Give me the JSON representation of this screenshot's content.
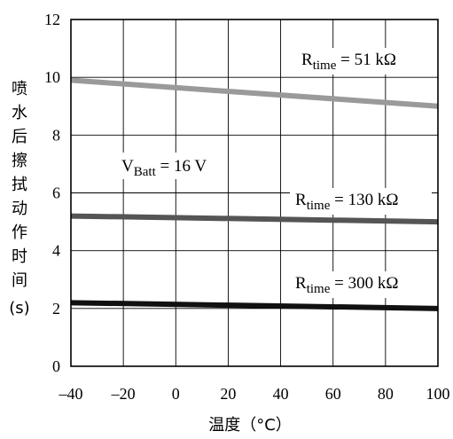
{
  "chart_data": {
    "type": "line",
    "xlabel": "温度（°C）",
    "ylabel": "喷水后擦拭动作时间(s)",
    "xlim": [
      -40,
      100
    ],
    "ylim": [
      0,
      12
    ],
    "x_ticks": [
      "–40",
      "–20",
      "0",
      "20",
      "40",
      "60",
      "80",
      "100"
    ],
    "y_ticks": [
      "0",
      "2",
      "4",
      "6",
      "8",
      "10",
      "12"
    ],
    "grid": true,
    "series": [
      {
        "label_main": "R",
        "label_sub": "time",
        "label_rest": " = 51 kΩ",
        "color": "#9a9a9a",
        "x": [
          -40,
          100
        ],
        "y": [
          9.9,
          9.0
        ]
      },
      {
        "label_main": "R",
        "label_sub": "time",
        "label_rest": " = 130 kΩ",
        "color": "#555555",
        "x": [
          -40,
          100
        ],
        "y": [
          5.2,
          5.0
        ]
      },
      {
        "label_main": "R",
        "label_sub": "time",
        "label_rest": " = 300 kΩ",
        "color": "#111111",
        "x": [
          -40,
          100
        ],
        "y": [
          2.2,
          2.0
        ]
      }
    ],
    "annotation": {
      "main": "V",
      "sub": "Batt",
      "rest": " = 16 V"
    }
  }
}
